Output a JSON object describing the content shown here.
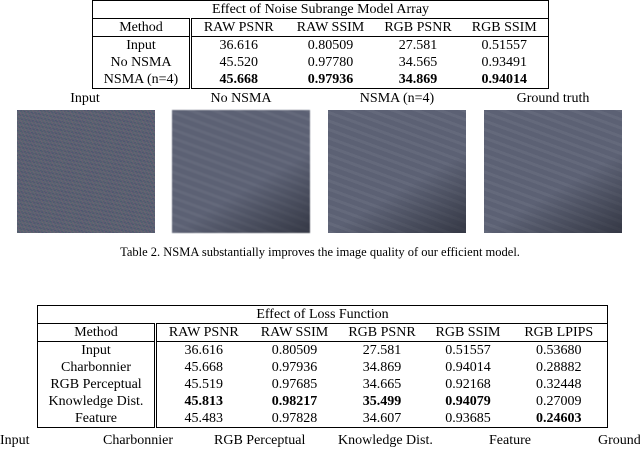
{
  "table1": {
    "title": "Effect of Noise Subrange Model Array",
    "header": [
      "Method",
      "RAW PSNR",
      "RAW SSIM",
      "RGB PSNR",
      "RGB SSIM"
    ],
    "rows": [
      [
        "Input",
        "36.616",
        "0.80509",
        "27.581",
        "0.51557"
      ],
      [
        "No NSMA",
        "45.520",
        "0.97780",
        "34.565",
        "0.93491"
      ],
      [
        "NSMA (n=4)",
        "45.668",
        "0.97936",
        "34.869",
        "0.94014"
      ]
    ],
    "bold_cells": [
      [
        2,
        1
      ],
      [
        2,
        2
      ],
      [
        2,
        3
      ],
      [
        2,
        4
      ]
    ]
  },
  "image_labels": [
    "Input",
    "No NSMA",
    "NSMA (n=4)",
    "Ground truth"
  ],
  "caption": "Table 2. NSMA substantially improves the image quality of our efficient model.",
  "table2": {
    "title": "Effect of Loss Function",
    "header": [
      "Method",
      "RAW PSNR",
      "RAW SSIM",
      "RGB PSNR",
      "RGB SSIM",
      "RGB LPIPS"
    ],
    "rows": [
      [
        "Input",
        "36.616",
        "0.80509",
        "27.581",
        "0.51557",
        "0.53680"
      ],
      [
        "Charbonnier",
        "45.668",
        "0.97936",
        "34.869",
        "0.94014",
        "0.28882"
      ],
      [
        "RGB Perceptual",
        "45.519",
        "0.97685",
        "34.665",
        "0.92168",
        "0.32448"
      ],
      [
        "Knowledge Dist.",
        "45.813",
        "0.98217",
        "35.499",
        "0.94079",
        "0.27009"
      ],
      [
        "Feature",
        "45.483",
        "0.97828",
        "34.607",
        "0.93685",
        "0.24603"
      ]
    ],
    "bold_cells": [
      [
        3,
        1
      ],
      [
        3,
        2
      ],
      [
        3,
        3
      ],
      [
        3,
        4
      ],
      [
        4,
        5
      ]
    ]
  },
  "bottom_labels": [
    "Input",
    "Charbonnier",
    "RGB Perceptual",
    "Knowledge Dist.",
    "Feature",
    "Ground"
  ]
}
